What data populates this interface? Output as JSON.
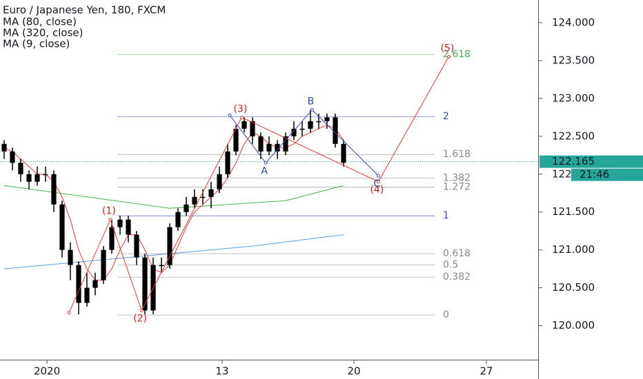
{
  "chart_data": {
    "type": "candlestick",
    "title": "Euro / Japanese Yen, 180, FXCM",
    "x": [
      0,
      1,
      2,
      3,
      4,
      5,
      6,
      7,
      8,
      9,
      10,
      11,
      12,
      13,
      14,
      15,
      16,
      17,
      18,
      19,
      20,
      21,
      22,
      23,
      24,
      25,
      26,
      27,
      28,
      29,
      30,
      31,
      32,
      33,
      34,
      35,
      36,
      37,
      38,
      39,
      40,
      41
    ],
    "open": [
      122.4,
      122.3,
      122.15,
      122.0,
      121.9,
      122.0,
      122.0,
      121.6,
      121.0,
      120.8,
      120.3,
      120.5,
      120.6,
      121.0,
      121.3,
      121.4,
      121.2,
      120.9,
      120.2,
      120.8,
      120.8,
      121.3,
      121.5,
      121.6,
      121.7,
      121.7,
      121.8,
      122.0,
      122.3,
      122.6,
      122.7,
      122.5,
      122.3,
      122.4,
      122.3,
      122.5,
      122.6,
      122.6,
      122.7,
      122.7,
      122.75,
      122.4
    ],
    "high": [
      122.45,
      122.35,
      122.2,
      122.05,
      122.1,
      122.1,
      122.05,
      121.65,
      121.1,
      120.85,
      120.7,
      120.7,
      121.05,
      121.4,
      121.45,
      121.45,
      121.25,
      120.95,
      120.9,
      120.9,
      121.35,
      121.55,
      121.7,
      121.8,
      121.8,
      121.9,
      122.1,
      122.4,
      122.65,
      122.75,
      122.75,
      122.55,
      122.5,
      122.45,
      122.55,
      122.7,
      122.7,
      122.85,
      122.8,
      122.8,
      122.8,
      122.45
    ],
    "low": [
      122.2,
      122.05,
      121.9,
      121.8,
      121.85,
      121.9,
      121.5,
      120.9,
      120.6,
      120.15,
      120.25,
      120.4,
      120.55,
      120.95,
      121.2,
      121.1,
      120.8,
      120.15,
      120.15,
      120.7,
      120.75,
      121.25,
      121.45,
      121.55,
      121.6,
      121.55,
      121.75,
      121.95,
      122.25,
      122.55,
      122.4,
      122.2,
      122.25,
      122.2,
      122.25,
      122.45,
      122.5,
      122.55,
      122.6,
      122.6,
      122.35,
      122.1
    ],
    "close": [
      122.3,
      122.15,
      122.0,
      121.9,
      122.0,
      122.0,
      121.6,
      121.0,
      120.8,
      120.3,
      120.5,
      120.6,
      121.0,
      121.3,
      121.4,
      121.2,
      120.9,
      120.2,
      120.8,
      120.8,
      121.3,
      121.5,
      121.6,
      121.7,
      121.7,
      121.8,
      122.0,
      122.3,
      122.6,
      122.7,
      122.5,
      122.3,
      122.4,
      122.3,
      122.5,
      122.6,
      122.6,
      122.7,
      122.7,
      122.75,
      122.4,
      122.15
    ],
    "color": "#000000",
    "series": [
      {
        "name": "MA (80, close)",
        "color": "#4caf50",
        "x": [
          0,
          10,
          20,
          27,
          34,
          41
        ],
        "values": [
          121.85,
          121.7,
          121.55,
          121.6,
          121.65,
          121.85
        ]
      },
      {
        "name": "MA (320, close)",
        "color": "#5b9bd5",
        "x": [
          0,
          10,
          20,
          30,
          41
        ],
        "values": [
          120.75,
          120.85,
          120.95,
          121.05,
          121.2
        ]
      },
      {
        "name": "MA (9, close)",
        "color": "#e53935",
        "x": [
          0,
          1,
          2,
          3,
          4,
          5,
          6,
          7,
          8,
          9,
          10,
          11,
          12,
          13,
          14,
          15,
          16,
          17,
          18,
          19,
          20,
          21,
          22,
          23,
          24,
          25,
          26,
          27,
          28,
          29,
          30,
          31,
          32,
          33,
          34,
          35,
          36,
          37,
          38,
          39,
          40,
          41
        ],
        "values": [
          122.35,
          122.3,
          122.2,
          122.1,
          122.0,
          122.0,
          121.9,
          121.7,
          121.4,
          121.0,
          120.75,
          120.6,
          120.6,
          120.75,
          121.0,
          121.2,
          121.2,
          121.0,
          120.75,
          120.7,
          120.8,
          121.05,
          121.3,
          121.5,
          121.6,
          121.7,
          121.8,
          121.95,
          122.15,
          122.4,
          122.55,
          122.5,
          122.4,
          122.35,
          122.35,
          122.4,
          122.5,
          122.55,
          122.6,
          122.65,
          122.6,
          122.45
        ]
      }
    ],
    "xlim": [
      -0.5,
      64.5
    ],
    "xticks": [
      {
        "value": 5.17,
        "label": "2020"
      },
      {
        "value": 26.33,
        "label": 13
      },
      {
        "value": 42.25,
        "label": 20
      },
      {
        "value": 58.25,
        "label": 27
      }
    ],
    "ylim": [
      119.55,
      124.3
    ],
    "yticks": [
      {
        "value": 124,
        "label": "124.000"
      },
      {
        "value": 123.5,
        "label": "123.500"
      },
      {
        "value": 123,
        "label": "123.000"
      },
      {
        "value": 122.5,
        "label": "122.500"
      },
      {
        "value": 122,
        "label": "122.000"
      },
      {
        "value": 121.5,
        "label": "121.500"
      },
      {
        "value": 121,
        "label": "121.000"
      },
      {
        "value": 120.5,
        "label": "120.500"
      },
      {
        "value": 120,
        "label": "120.000"
      }
    ],
    "last_price": {
      "value": 122.165,
      "label": "122.165",
      "color": "#26a69a"
    },
    "countdown": "21:46",
    "fibonacci": {
      "x": [
        13.7,
        52
      ],
      "levels": [
        {
          "ratio": 0,
          "price": 120.14,
          "color": "#888888"
        },
        {
          "ratio": 0.382,
          "price": 120.64,
          "color": "#888888"
        },
        {
          "ratio": 0.5,
          "price": 120.8,
          "color": "#888888"
        },
        {
          "ratio": 0.618,
          "price": 120.95,
          "color": "#888888"
        },
        {
          "ratio": 1,
          "price": 121.45,
          "color": "#3346a8"
        },
        {
          "ratio": 1.272,
          "price": 121.83,
          "color": "#888888"
        },
        {
          "ratio": 1.382,
          "price": 121.95,
          "color": "#888888"
        },
        {
          "ratio": 1.618,
          "price": 122.26,
          "color": "#888888"
        },
        {
          "ratio": 2,
          "price": 122.76,
          "color": "#3346a8"
        },
        {
          "ratio": 2.618,
          "price": 123.58,
          "color": "#4caf50"
        }
      ]
    },
    "impulse": {
      "color": "#e53935",
      "x": [
        7.83,
        12.83,
        16.6,
        28.7,
        45.2,
        53.7
      ],
      "values": [
        120.17,
        121.4,
        120.2,
        122.75,
        121.9,
        123.55
      ],
      "labels": [
        null,
        "(1)",
        "(2)",
        "(3)",
        "(4)",
        "(5)"
      ]
    },
    "correction": {
      "color": "#3346a8",
      "x": [
        27.25,
        31.6,
        37.2,
        45.2
      ],
      "values": [
        122.78,
        122.15,
        122.85,
        121.98
      ],
      "labels": [
        null,
        "A",
        "B",
        "C"
      ]
    }
  }
}
